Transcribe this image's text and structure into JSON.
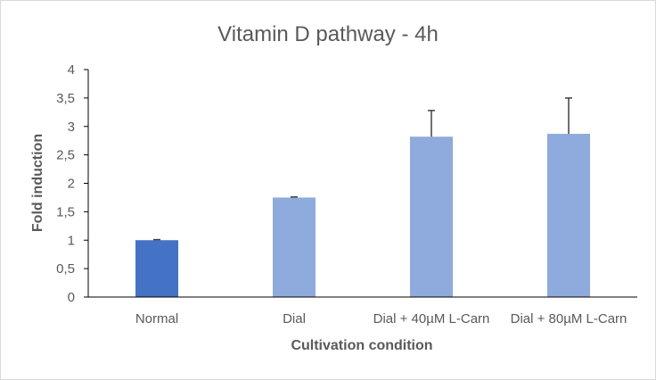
{
  "chart_data": {
    "type": "bar",
    "title": "Vitamin D pathway - 4h",
    "xlabel": "Cultivation condition",
    "ylabel": "Fold induction",
    "categories": [
      "Normal",
      "Dial",
      "Dial + 40µM L-Carn",
      "Dial + 80µM L-Carn"
    ],
    "values": [
      1.0,
      1.75,
      2.82,
      2.87
    ],
    "error_upper": [
      0.01,
      0.01,
      0.46,
      0.63
    ],
    "ylim": [
      0,
      4
    ],
    "yticks": [
      "0",
      "0,5",
      "1",
      "1,5",
      "2",
      "2,5",
      "3",
      "3,5",
      "4"
    ],
    "ytick_values": [
      0,
      0.5,
      1,
      1.5,
      2,
      2.5,
      3,
      3.5,
      4
    ],
    "bar_colors": [
      "#4472c4",
      "#8faadc",
      "#8faadc",
      "#8faadc"
    ],
    "error_bar_color": "#404040",
    "axis_color": "#000000",
    "grid": false,
    "legend": "none"
  }
}
